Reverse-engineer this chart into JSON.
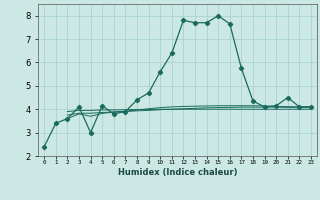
{
  "title": "",
  "xlabel": "Humidex (Indice chaleur)",
  "ylabel": "",
  "background_color": "#cce8e4",
  "grid_color": "#aad4ce",
  "line_color": "#1a6b5e",
  "x_min": -0.5,
  "x_max": 23.5,
  "y_min": 2,
  "y_max": 8.5,
  "yticks": [
    2,
    3,
    4,
    5,
    6,
    7,
    8
  ],
  "xtick_labels": [
    "0",
    "1",
    "2",
    "3",
    "4",
    "5",
    "6",
    "7",
    "8",
    "9",
    "10",
    "11",
    "12",
    "13",
    "14",
    "15",
    "16",
    "17",
    "18",
    "19",
    "20",
    "21",
    "22",
    "23"
  ],
  "lines": [
    {
      "x": [
        0,
        1,
        2,
        3,
        4,
        5,
        6,
        7,
        8,
        9,
        10,
        11,
        12,
        13,
        14,
        15,
        16,
        17,
        18,
        19,
        20,
        21,
        22,
        23
      ],
      "y": [
        2.4,
        3.4,
        3.6,
        4.1,
        3.0,
        4.15,
        3.8,
        3.9,
        4.4,
        4.7,
        5.6,
        6.4,
        7.8,
        7.7,
        7.7,
        8.0,
        7.65,
        5.75,
        4.35,
        4.1,
        4.15,
        4.5,
        4.1,
        4.1
      ],
      "marker": true
    },
    {
      "x": [
        2,
        3,
        4,
        5,
        6,
        7,
        8,
        9,
        10,
        11,
        12,
        13,
        14,
        15,
        16,
        17,
        18,
        19,
        20,
        21,
        22,
        23
      ],
      "y": [
        3.6,
        3.8,
        3.7,
        3.82,
        3.88,
        3.92,
        3.97,
        4.02,
        4.07,
        4.1,
        4.12,
        4.13,
        4.14,
        4.15,
        4.15,
        4.15,
        4.15,
        4.14,
        4.12,
        4.11,
        4.1,
        4.1
      ],
      "marker": false
    },
    {
      "x": [
        2,
        3,
        4,
        5,
        6,
        7,
        8,
        9,
        10,
        11,
        12,
        13,
        14,
        15,
        16,
        17,
        18,
        19,
        20,
        21,
        22,
        23
      ],
      "y": [
        3.75,
        3.83,
        3.83,
        3.86,
        3.88,
        3.9,
        3.93,
        3.95,
        3.98,
        4.0,
        4.02,
        4.04,
        4.06,
        4.07,
        4.08,
        4.09,
        4.09,
        4.09,
        4.09,
        4.08,
        4.08,
        4.08
      ],
      "marker": false
    },
    {
      "x": [
        2,
        3,
        4,
        5,
        6,
        7,
        8,
        9,
        10,
        11,
        12,
        13,
        14,
        15,
        16,
        17,
        18,
        19,
        20,
        21,
        22,
        23
      ],
      "y": [
        3.9,
        3.95,
        3.95,
        3.97,
        3.97,
        3.98,
        3.99,
        3.99,
        4.0,
        4.0,
        4.0,
        4.0,
        4.0,
        4.0,
        4.0,
        4.0,
        4.0,
        4.0,
        4.0,
        4.0,
        4.0,
        4.0
      ],
      "marker": false
    }
  ]
}
